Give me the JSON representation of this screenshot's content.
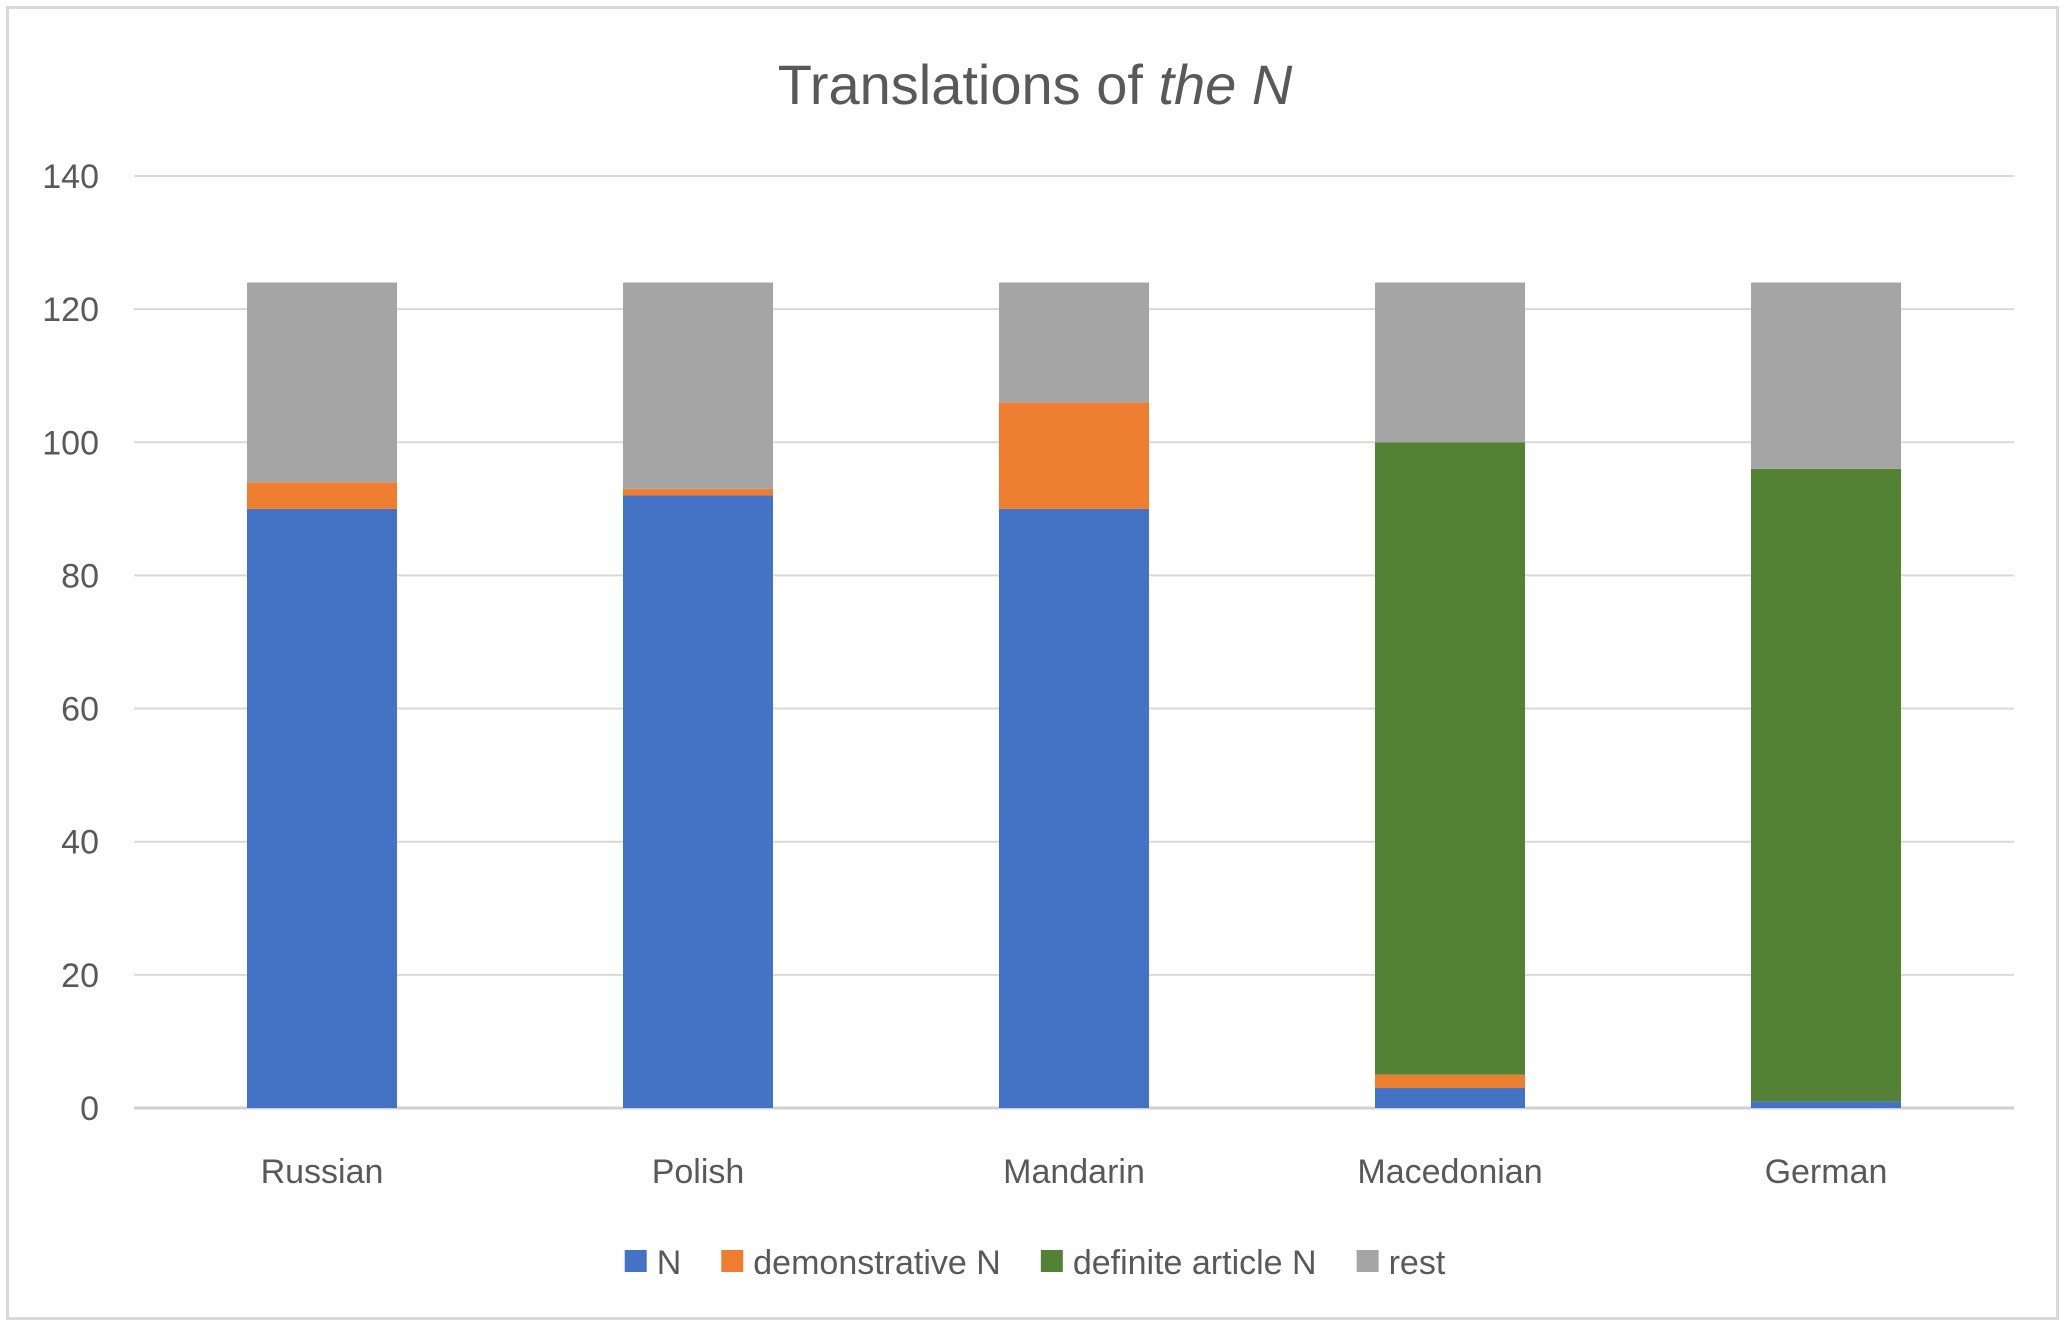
{
  "chart_data": {
    "type": "bar",
    "stacked": true,
    "title": {
      "plain": "Translations of ",
      "italic": "the N"
    },
    "xlabel": "",
    "ylabel": "",
    "ylim": [
      0,
      140
    ],
    "yticks": [
      0,
      20,
      40,
      60,
      80,
      100,
      120,
      140
    ],
    "grid": true,
    "legend_position": "bottom",
    "categories": [
      "Russian",
      "Polish",
      "Mandarin",
      "Macedonian",
      "German"
    ],
    "series": [
      {
        "name": "N",
        "color": "#4472c4",
        "values": [
          90,
          92,
          90,
          3,
          1
        ]
      },
      {
        "name": "demonstrative N",
        "color": "#ed7d31",
        "values": [
          4,
          1,
          16,
          2,
          0
        ]
      },
      {
        "name": "definite article N",
        "color": "#548235",
        "values": [
          0,
          0,
          0,
          95,
          95
        ]
      },
      {
        "name": "rest",
        "color": "#a5a5a5",
        "values": [
          30,
          31,
          18,
          24,
          28
        ]
      }
    ]
  }
}
